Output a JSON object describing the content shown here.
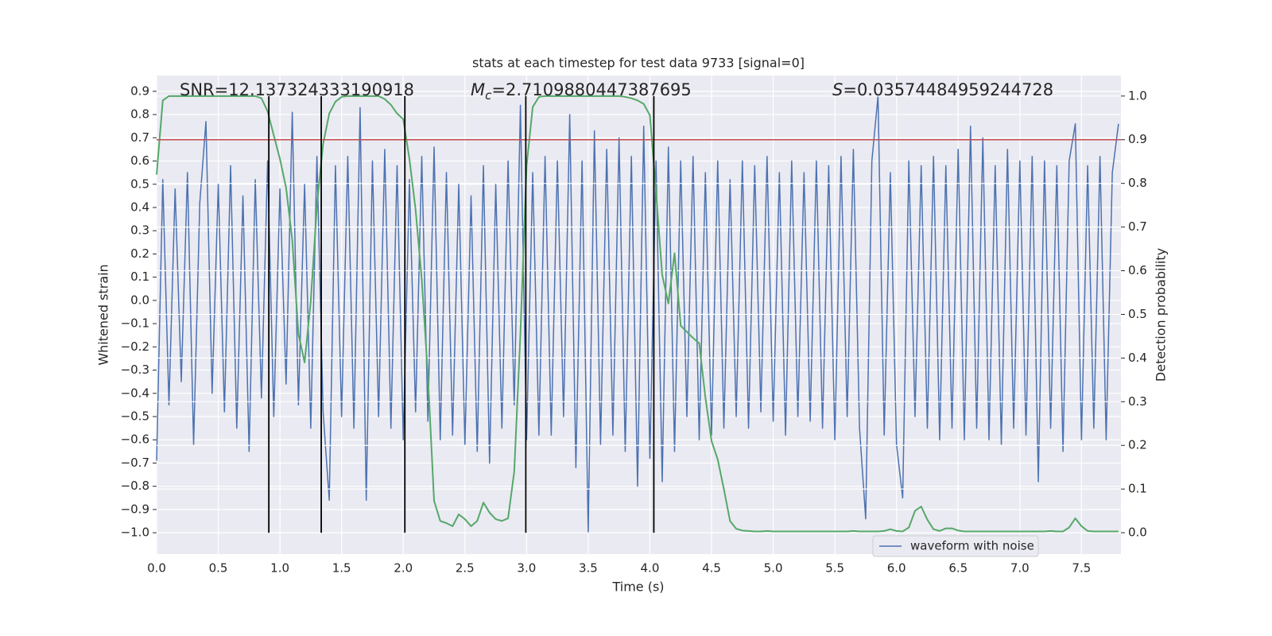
{
  "chart_data": {
    "type": "line",
    "title": "stats at each timestep for test data 9733 [signal=0]",
    "xlabel": "Time (s)",
    "ylabel": "Whitened strain",
    "y2label": "Detection probability",
    "annotations": [
      {
        "text": "SNR=12.137324333190918"
      },
      {
        "symbol": "M",
        "sub": "c",
        "text": "=2.7109880447387695"
      },
      {
        "symbol": "S",
        "text": "=0.03574484959244728"
      }
    ],
    "x": [
      0,
      0.05,
      0.1,
      0.15,
      0.2,
      0.25,
      0.3,
      0.35,
      0.4,
      0.45,
      0.5,
      0.55,
      0.6,
      0.65,
      0.7,
      0.75,
      0.8,
      0.85,
      0.9,
      0.95,
      1,
      1.05,
      1.1,
      1.15,
      1.2,
      1.25,
      1.3,
      1.35,
      1.4,
      1.45,
      1.5,
      1.55,
      1.6,
      1.65,
      1.7,
      1.75,
      1.8,
      1.85,
      1.9,
      1.95,
      2,
      2.05,
      2.1,
      2.15,
      2.2,
      2.25,
      2.3,
      2.35,
      2.4,
      2.45,
      2.5,
      2.55,
      2.6,
      2.65,
      2.7,
      2.75,
      2.8,
      2.85,
      2.9,
      2.95,
      3,
      3.05,
      3.1,
      3.15,
      3.2,
      3.25,
      3.3,
      3.35,
      3.4,
      3.45,
      3.5,
      3.55,
      3.6,
      3.65,
      3.7,
      3.75,
      3.8,
      3.85,
      3.9,
      3.95,
      4,
      4.05,
      4.1,
      4.15,
      4.2,
      4.25,
      4.3,
      4.35,
      4.4,
      4.45,
      4.5,
      4.55,
      4.6,
      4.65,
      4.7,
      4.75,
      4.8,
      4.85,
      4.9,
      4.95,
      5,
      5.05,
      5.1,
      5.15,
      5.2,
      5.25,
      5.3,
      5.35,
      5.4,
      5.45,
      5.5,
      5.55,
      5.6,
      5.65,
      5.7,
      5.75,
      5.8,
      5.85,
      5.9,
      5.95,
      6,
      6.05,
      6.1,
      6.15,
      6.2,
      6.25,
      6.3,
      6.35,
      6.4,
      6.45,
      6.5,
      6.55,
      6.6,
      6.65,
      6.7,
      6.75,
      6.8,
      6.85,
      6.9,
      6.95,
      7,
      7.05,
      7.1,
      7.15,
      7.2,
      7.25,
      7.3,
      7.35,
      7.4,
      7.45,
      7.5,
      7.55,
      7.6,
      7.65,
      7.7,
      7.75,
      7.8
    ],
    "series": [
      {
        "name": "waveform with noise",
        "color": "#4c72b0",
        "axis": "y",
        "values": [
          -0.69,
          0.52,
          -0.45,
          0.48,
          -0.35,
          0.55,
          -0.62,
          0.42,
          0.77,
          -0.4,
          0.5,
          -0.48,
          0.58,
          -0.55,
          0.45,
          -0.65,
          0.52,
          -0.42,
          0.6,
          -0.5,
          0.48,
          -0.36,
          0.81,
          -0.45,
          0.5,
          -0.55,
          0.62,
          -0.48,
          -0.86,
          0.58,
          -0.5,
          0.62,
          -0.55,
          0.83,
          -0.86,
          0.6,
          -0.5,
          0.65,
          -0.55,
          0.58,
          -0.6,
          0.52,
          -0.48,
          0.62,
          -0.52,
          0.66,
          -0.6,
          0.55,
          -0.58,
          0.5,
          -0.62,
          0.45,
          -0.65,
          0.58,
          -0.7,
          0.5,
          -0.55,
          0.6,
          -0.45,
          0.84,
          -0.6,
          0.55,
          -0.58,
          0.62,
          -0.58,
          0.6,
          -0.5,
          0.8,
          -0.72,
          0.6,
          -1.0,
          0.73,
          -0.62,
          0.65,
          -0.58,
          0.7,
          -0.65,
          0.62,
          -0.8,
          0.75,
          -0.68,
          0.6,
          -0.78,
          0.66,
          -0.65,
          0.6,
          -0.5,
          0.62,
          -0.6,
          0.55,
          -0.58,
          0.6,
          -0.55,
          0.52,
          -0.5,
          0.6,
          -0.55,
          0.58,
          -0.48,
          0.62,
          -0.52,
          0.55,
          -0.58,
          0.6,
          -0.5,
          0.55,
          -0.52,
          0.6,
          -0.55,
          0.58,
          -0.6,
          0.62,
          -0.5,
          0.65,
          -0.55,
          -0.94,
          0.6,
          0.88,
          -0.58,
          0.55,
          -0.62,
          -0.85,
          0.6,
          -0.5,
          0.58,
          -0.55,
          0.62,
          -0.6,
          0.58,
          -0.55,
          0.65,
          -0.6,
          0.75,
          -0.55,
          0.7,
          -0.6,
          0.58,
          -0.62,
          0.65,
          -0.55,
          0.6,
          -0.58,
          0.62,
          -0.78,
          0.6,
          -0.55,
          0.58,
          -0.65,
          0.6,
          0.76,
          -0.6,
          0.58,
          -0.55,
          0.62,
          -0.6,
          0.55,
          0.76
        ]
      },
      {
        "color": "#55a868",
        "axis": "y2",
        "values": [
          0.82,
          0.99,
          1,
          1,
          1,
          1,
          1,
          1,
          1,
          1,
          1,
          1,
          1,
          1,
          1,
          1,
          1,
          0.995,
          0.965,
          0.91,
          0.856,
          0.79,
          0.67,
          0.455,
          0.39,
          0.53,
          0.75,
          0.89,
          0.96,
          0.987,
          0.998,
          1,
          1,
          1,
          1,
          1,
          1,
          0.993,
          0.98,
          0.96,
          0.947,
          0.856,
          0.74,
          0.58,
          0.36,
          0.073,
          0.027,
          0.022,
          0.015,
          0.042,
          0.031,
          0.015,
          0.027,
          0.069,
          0.046,
          0.031,
          0.027,
          0.033,
          0.14,
          0.455,
          0.84,
          0.975,
          0.998,
          1,
          1,
          1,
          1,
          1,
          1,
          1,
          1,
          1,
          1,
          1,
          1,
          1,
          0.998,
          0.995,
          0.99,
          0.982,
          0.956,
          0.78,
          0.59,
          0.525,
          0.64,
          0.474,
          0.46,
          0.446,
          0.434,
          0.31,
          0.21,
          0.168,
          0.1,
          0.027,
          0.009,
          0.005,
          0.004,
          0.003,
          0.003,
          0.004,
          0.003,
          0.003,
          0.003,
          0.003,
          0.003,
          0.003,
          0.003,
          0.003,
          0.003,
          0.003,
          0.003,
          0.003,
          0.003,
          0.004,
          0.003,
          0.003,
          0.003,
          0.003,
          0.004,
          0.008,
          0.004,
          0.003,
          0.012,
          0.05,
          0.06,
          0.03,
          0.008,
          0.004,
          0.01,
          0.01,
          0.005,
          0.003,
          0.003,
          0.003,
          0.003,
          0.003,
          0.003,
          0.003,
          0.003,
          0.003,
          0.003,
          0.003,
          0.003,
          0.003,
          0.003,
          0.004,
          0.003,
          0.003,
          0.012,
          0.033,
          0.015,
          0.004,
          0.003,
          0.003,
          0.003,
          0.003,
          0.003
        ]
      }
    ],
    "hlines": [
      {
        "value": 0.9,
        "axis": "y2",
        "color": "#c44e52"
      }
    ],
    "vlines": [
      0.91,
      1.335,
      2.013,
      2.994,
      4.032
    ],
    "vline_span_y2": [
      0,
      1
    ],
    "vline_color": "#000000",
    "xlim": [
      0,
      7.82
    ],
    "ylim": [
      -1.092,
      0.968
    ],
    "y2lim": [
      -0.049,
      1.047
    ],
    "xticks": [
      {
        "value": 0,
        "label": "0.0"
      },
      0.5,
      {
        "value": 1,
        "label": "1.0"
      },
      1.5,
      {
        "value": 2,
        "label": "2.0"
      },
      2.5,
      {
        "value": 3,
        "label": "3.0"
      },
      3.5,
      {
        "value": 4,
        "label": "4.0"
      },
      4.5,
      {
        "value": 5,
        "label": "5.0"
      },
      5.5,
      {
        "value": 6,
        "label": "6.0"
      },
      6.5,
      {
        "value": 7,
        "label": "7.0"
      },
      7.5
    ],
    "yticks": [
      {
        "value": -1,
        "label": "−1.0"
      },
      {
        "value": -0.9,
        "label": "−0.9"
      },
      {
        "value": -0.8,
        "label": "−0.8"
      },
      {
        "value": -0.7,
        "label": "−0.7"
      },
      {
        "value": -0.6,
        "label": "−0.6"
      },
      {
        "value": -0.5,
        "label": "−0.5"
      },
      {
        "value": -0.4,
        "label": "−0.4"
      },
      {
        "value": -0.3,
        "label": "−0.3"
      },
      {
        "value": -0.2,
        "label": "−0.2"
      },
      {
        "value": -0.1,
        "label": "−0.1"
      },
      {
        "value": 0,
        "label": "0.0"
      },
      0.1,
      0.2,
      0.3,
      0.4,
      0.5,
      0.6,
      0.7,
      0.8,
      0.9
    ],
    "y2ticks": [
      {
        "value": 0,
        "label": "0.0"
      },
      0.1,
      0.2,
      0.3,
      0.4,
      0.5,
      0.6,
      0.7,
      0.8,
      0.9,
      {
        "value": 1,
        "label": "1.0"
      }
    ],
    "grid": true,
    "legend": "lower right"
  }
}
